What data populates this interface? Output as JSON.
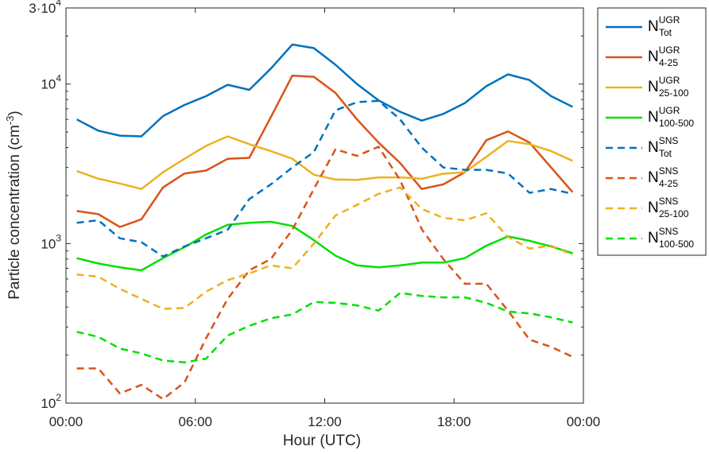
{
  "chart_data": {
    "type": "line",
    "xlabel": "Hour (UTC)",
    "ylabel": "Particle concentration (cm",
    "ylabel_exp": "-3",
    "ylabel_close": ")",
    "yscale": "log",
    "ylim": [
      100,
      30000
    ],
    "xlim": [
      0,
      24
    ],
    "grid": false,
    "legend_position": "outside-right",
    "x_ticks": [
      {
        "value": 0,
        "label": "00:00"
      },
      {
        "value": 6,
        "label": "06:00"
      },
      {
        "value": 12,
        "label": "12:00"
      },
      {
        "value": 18,
        "label": "18:00"
      },
      {
        "value": 24,
        "label": "00:00"
      }
    ],
    "y_ticks": [
      {
        "value": 100,
        "base": "10",
        "exp": "2"
      },
      {
        "value": 1000,
        "base": "10",
        "exp": "3"
      },
      {
        "value": 10000,
        "base": "10",
        "exp": "4"
      },
      {
        "value": 30000,
        "base": "3·10",
        "exp": "4"
      }
    ],
    "x": [
      0.5,
      1.5,
      2.5,
      3.5,
      4.5,
      5.5,
      6.5,
      7.5,
      8.5,
      9.5,
      10.5,
      11.5,
      12.5,
      13.5,
      14.5,
      15.5,
      16.5,
      17.5,
      18.5,
      19.5,
      20.5,
      21.5,
      22.5,
      23.5
    ],
    "series": [
      {
        "name": "N",
        "sup": "UGR",
        "sub": "Tot",
        "color": "#0072BD",
        "dash": false,
        "values": [
          6000,
          5100,
          4750,
          4700,
          6300,
          7400,
          8400,
          9900,
          9200,
          12500,
          17700,
          16800,
          13200,
          10000,
          7900,
          6700,
          5900,
          6500,
          7600,
          9700,
          11500,
          10600,
          8400,
          7200
        ]
      },
      {
        "name": "N",
        "sup": "UGR",
        "sub": "4-25",
        "color": "#D95319",
        "dash": false,
        "values": [
          1600,
          1530,
          1270,
          1420,
          2250,
          2750,
          2870,
          3400,
          3450,
          6200,
          11300,
          11100,
          8800,
          6000,
          4300,
          3200,
          2200,
          2350,
          2800,
          4450,
          5050,
          4300,
          3000,
          2100
        ]
      },
      {
        "name": "N",
        "sup": "UGR",
        "sub": "25-100",
        "color": "#EDB120",
        "dash": false,
        "values": [
          2850,
          2550,
          2380,
          2200,
          2800,
          3400,
          4100,
          4700,
          4200,
          3800,
          3400,
          2700,
          2520,
          2510,
          2600,
          2600,
          2550,
          2740,
          2800,
          3500,
          4400,
          4200,
          3800,
          3300
        ]
      },
      {
        "name": "N",
        "sup": "UGR",
        "sub": "100-500",
        "color": "#00E000",
        "dash": false,
        "values": [
          810,
          750,
          710,
          680,
          810,
          950,
          1140,
          1310,
          1350,
          1370,
          1290,
          1050,
          840,
          730,
          710,
          730,
          760,
          760,
          810,
          970,
          1110,
          1040,
          960,
          870
        ]
      },
      {
        "name": "N",
        "sup": "SNS",
        "sub": "Tot",
        "color": "#0072BD",
        "dash": true,
        "values": [
          1350,
          1400,
          1080,
          1020,
          830,
          960,
          1080,
          1220,
          1900,
          2350,
          3000,
          3750,
          6850,
          7700,
          7850,
          6000,
          4000,
          3000,
          2900,
          2900,
          2750,
          2080,
          2200,
          2050
        ]
      },
      {
        "name": "N",
        "sup": "SNS",
        "sub": "4-25",
        "color": "#D95319",
        "dash": true,
        "values": [
          165,
          165,
          115,
          130,
          106,
          135,
          255,
          450,
          680,
          800,
          1220,
          2200,
          3900,
          3550,
          4050,
          2500,
          1230,
          800,
          560,
          560,
          380,
          250,
          225,
          195
        ]
      },
      {
        "name": "N",
        "sup": "SNS",
        "sub": "25-100",
        "color": "#EDB120",
        "dash": true,
        "values": [
          640,
          620,
          520,
          450,
          390,
          395,
          500,
          590,
          650,
          730,
          700,
          1000,
          1500,
          1750,
          2050,
          2250,
          1650,
          1450,
          1400,
          1550,
          1100,
          930,
          970,
          850
        ]
      },
      {
        "name": "N",
        "sup": "SNS",
        "sub": "100-500",
        "color": "#00E000",
        "dash": true,
        "values": [
          280,
          260,
          220,
          205,
          185,
          180,
          190,
          265,
          305,
          340,
          360,
          430,
          425,
          410,
          380,
          490,
          470,
          460,
          460,
          425,
          375,
          365,
          345,
          320
        ]
      }
    ]
  }
}
